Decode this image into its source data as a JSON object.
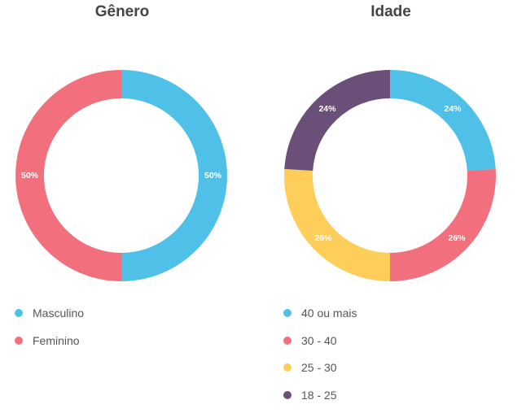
{
  "chart_data": [
    {
      "type": "pie",
      "title": "Gênero",
      "donut": true,
      "slices": [
        {
          "label": "Masculino",
          "value": 50,
          "display": "50%",
          "color": "#4FC1E9"
        },
        {
          "label": "Feminino",
          "value": 50,
          "display": "50%",
          "color": "#F2707E"
        }
      ],
      "legend_placement": "bottom-left"
    },
    {
      "type": "pie",
      "title": "Idade",
      "donut": true,
      "slices": [
        {
          "label": "40 ou mais",
          "value": 24,
          "display": "24%",
          "color": "#4FC1E9"
        },
        {
          "label": "30 - 40",
          "value": 26,
          "display": "26%",
          "color": "#F2707E"
        },
        {
          "label": "25 - 30",
          "value": 26,
          "display": "26%",
          "color": "#FECE5A"
        },
        {
          "label": "18 - 25",
          "value": 24,
          "display": "24%",
          "color": "#6A5078"
        }
      ],
      "legend_placement": "bottom-left"
    }
  ]
}
